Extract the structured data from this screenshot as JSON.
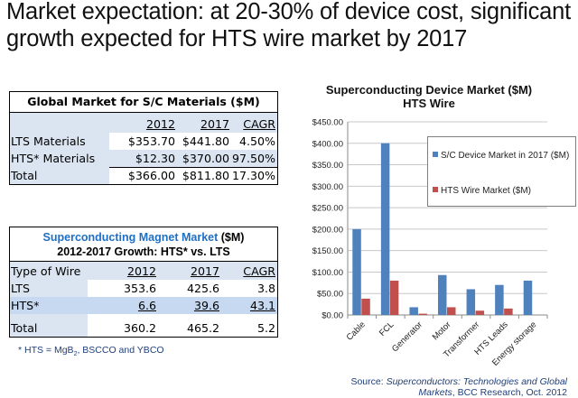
{
  "title": {
    "line1": "Market expectation:  at 20-30% of device cost, significant",
    "line2": "growth expected for HTS wire market by 2017"
  },
  "materials_table": {
    "title": "Global Market for S/C Materials  ($M)",
    "columns": [
      "",
      "2012",
      "2017",
      "CAGR"
    ],
    "rows": [
      {
        "label": "LTS Materials",
        "y2012": "$353.70",
        "y2017": "$441.80",
        "cagr": "4.50%"
      },
      {
        "label": "HTS* Materials",
        "y2012": "$12.30",
        "y2017": "$370.00",
        "cagr": "97.50%"
      },
      {
        "label": "Total",
        "y2012": "$366.00",
        "y2017": "$811.80",
        "cagr": "17.30%"
      }
    ]
  },
  "magnet_table": {
    "title_blue": "Superconducting Magnet Market",
    "title_unit": " ($M)",
    "subtitle": "2012-2017 Growth:  HTS* vs. LTS",
    "columns": [
      "Type of Wire",
      "2012",
      "2017",
      "CAGR"
    ],
    "rows": [
      {
        "label": "LTS",
        "y2012": "353.6",
        "y2017": "425.6",
        "cagr": "3.8"
      },
      {
        "label": "HTS*",
        "y2012": "6.6",
        "y2017": "39.6",
        "cagr": "43.1"
      },
      {
        "label": "Total",
        "y2012": "360.2",
        "y2017": "465.2",
        "cagr": "5.2"
      }
    ]
  },
  "footnote": {
    "prefix": "* HTS = MgB",
    "sub": "2",
    "suffix": ", BSCCO and YBCO"
  },
  "source": {
    "prefix": "Source:  ",
    "italic1": "Superconductors: Technologies and Global",
    "italic2": "Markets",
    "suffix": ", BCC Research, Oct. 2012"
  },
  "chart_data": {
    "type": "bar",
    "title": "Superconducting Device Market ($M)",
    "subtitle": "HTS Wire",
    "xlabel": "",
    "ylabel": "",
    "ylim": [
      0,
      450
    ],
    "ytick_step": 50,
    "ytick_labels": [
      "$0.00",
      "$50.00",
      "$100.00",
      "$150.00",
      "$200.00",
      "$250.00",
      "$300.00",
      "$350.00",
      "$400.00",
      "$450.00"
    ],
    "grid": true,
    "legend_position": "top-right",
    "categories": [
      "Cable",
      "FCL",
      "Generator",
      "Motor",
      "Transformer",
      "HTS Leads",
      "Energy storage"
    ],
    "series": [
      {
        "name": "S/C Device Market in 2017  ($M)",
        "color": "#4f81bd",
        "values": [
          200,
          400,
          18,
          93,
          60,
          70,
          80
        ]
      },
      {
        "name": "HTS Wire Market ($M)",
        "color": "#c0504d",
        "values": [
          38,
          80,
          3,
          18,
          10,
          15,
          0
        ]
      }
    ]
  }
}
